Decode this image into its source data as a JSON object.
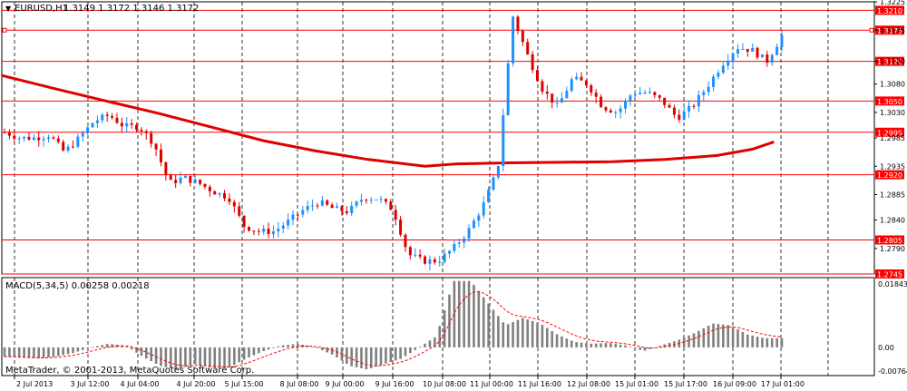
{
  "header": {
    "arrow": "▼",
    "symbol": "EURUSD,H1",
    "ohlc": "1.3149 1.3172 1.3146 1.3172"
  },
  "macd": {
    "title": "MACD(5,34,5) 0.00258 0.00218",
    "scale_labels": [
      "0.01843",
      "0.00",
      "-0.00764"
    ],
    "watermark": "MetaTrader, © 2001-2013, MetaQuotes Software Corp."
  },
  "price_scale": [
    "1.3225",
    "1.3175",
    "1.3120",
    "1.3080",
    "1.3030",
    "1.2985",
    "1.2935",
    "1.2885",
    "1.2840",
    "1.2790"
  ],
  "time_axis": [
    "2 Jul 2013",
    "3 Jul 12:00",
    "4 Jul 04:00",
    "4 Jul 20:00",
    "5 Jul 15:00",
    "8 Jul 08:00",
    "9 Jul 00:00",
    "9 Jul 16:00",
    "10 Jul 08:00",
    "11 Jul 00:00",
    "11 Jul 16:00",
    "12 Jul 08:00",
    "15 Jul 01:00",
    "15 Jul 17:00",
    "16 Jul 09:00",
    "17 Jul 01:00"
  ],
  "colors": {
    "bull": "#1e90ff",
    "bear": "#e00000",
    "level_line": "#ff0000",
    "ma_line": "#e00000",
    "grid": "#000000",
    "macd_hist": "#808080",
    "macd_signal": "#ff0000"
  },
  "chart_data": {
    "type": "candlestick",
    "symbol": "EURUSD",
    "timeframe": "H1",
    "ylim": [
      1.2745,
      1.3225
    ],
    "horizontal_levels": [
      "1.3210",
      "1.3175",
      "1.3120",
      "1.3050",
      "1.2995",
      "1.2920",
      "1.2805",
      "1.2745"
    ],
    "moving_average": [
      1.3095,
      1.3072,
      1.305,
      1.3028,
      1.3004,
      1.298,
      1.2962,
      1.2947,
      1.2935,
      1.2939,
      1.2941,
      1.2942,
      1.2943,
      1.2947,
      1.2954,
      1.2965,
      1.2978
    ],
    "moving_average_x": [
      0,
      0.06,
      0.12,
      0.18,
      0.24,
      0.3,
      0.36,
      0.42,
      0.485,
      0.52,
      0.58,
      0.64,
      0.7,
      0.76,
      0.82,
      0.86,
      0.885
    ],
    "close_path": [
      1.2995,
      1.2985,
      1.2985,
      1.299,
      1.296,
      1.2985,
      1.3015,
      1.3025,
      1.3005,
      1.3005,
      1.2975,
      1.2905,
      1.2915,
      1.2905,
      1.289,
      1.288,
      1.283,
      1.282,
      1.282,
      1.2838,
      1.2858,
      1.2872,
      1.286,
      1.2855,
      1.288,
      1.2878,
      1.2858,
      1.278,
      1.2768,
      1.2768,
      1.279,
      1.282,
      1.2865,
      1.293,
      1.32,
      1.313,
      1.307,
      1.304,
      1.309,
      1.308,
      1.304,
      1.303,
      1.3065,
      1.3065,
      1.305,
      1.302,
      1.304,
      1.3075,
      1.3115,
      1.3145,
      1.314,
      1.312,
      1.3165
    ],
    "macd_hist": [
      -0.0025,
      -0.0028,
      -0.003,
      -0.0025,
      -0.0015,
      0.0,
      0.001,
      0.0005,
      -0.0025,
      -0.005,
      -0.006,
      -0.0045,
      -0.0055,
      -0.0055,
      -0.003,
      -0.001,
      0.0005,
      0.001,
      0.0,
      -0.002,
      -0.005,
      -0.006,
      -0.0045,
      -0.003,
      0.0,
      0.003,
      0.018,
      0.018,
      0.012,
      0.006,
      0.008,
      0.0065,
      0.0035,
      0.0015,
      0.001,
      0.0012,
      0.0005,
      -0.001,
      0.0005,
      0.002,
      0.004,
      0.0065,
      0.006,
      0.0035,
      0.0025,
      0.0025
    ]
  }
}
